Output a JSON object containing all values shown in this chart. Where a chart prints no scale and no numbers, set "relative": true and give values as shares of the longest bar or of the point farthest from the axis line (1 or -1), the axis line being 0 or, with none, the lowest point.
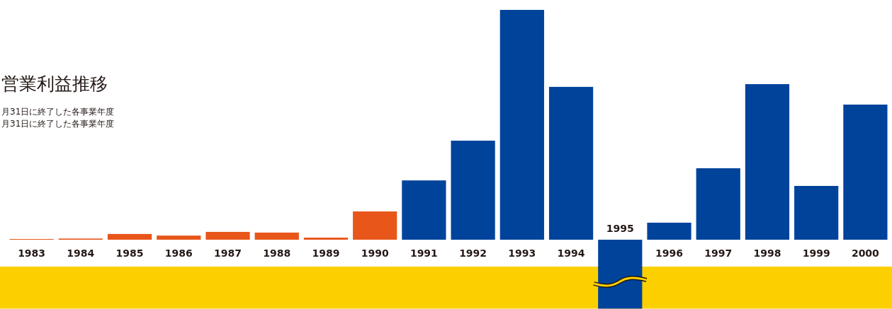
{
  "chart_data": {
    "type": "bar",
    "relative": true,
    "title": "営業利益推移",
    "subtitle": "月31日に終了した各事業年度",
    "annotations": [
      "月31日に終了した各事業年度"
    ],
    "bands": [
      {
        "axis": "y",
        "from": -0.117,
        "to": -0.3,
        "color": "#fcd000"
      }
    ],
    "categories": [
      "1983",
      "1984",
      "1985",
      "1986",
      "1987",
      "1988",
      "1989",
      "1990",
      "1991",
      "1992",
      "1993",
      "1994",
      "1995",
      "1996",
      "1997",
      "1998",
      "1999",
      "2000"
    ],
    "values": [
      0.003,
      0.005,
      0.025,
      0.018,
      0.034,
      0.031,
      0.009,
      0.123,
      0.258,
      0.431,
      1,
      0.665,
      -0.3,
      0.074,
      0.311,
      0.677,
      0.234,
      0.588
    ],
    "colors": [
      "#e8561a",
      "#e8561a",
      "#e8561a",
      "#e8561a",
      "#e8561a",
      "#e8561a",
      "#e8561a",
      "#e8561a",
      "#00439b",
      "#00439b",
      "#00439b",
      "#00439b",
      "#00439b",
      "#00439b",
      "#00439b",
      "#00439b",
      "#00439b",
      "#00439b"
    ]
  }
}
